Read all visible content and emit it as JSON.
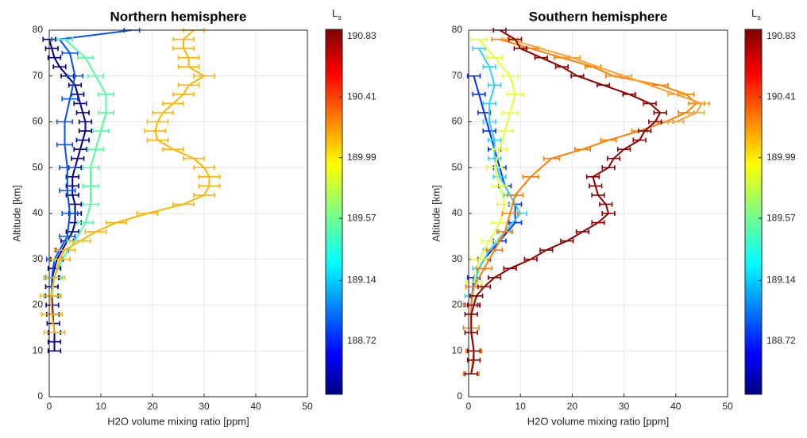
{
  "chart_data": [
    {
      "type": "line",
      "title": "Northern hemisphere",
      "x_label": "H2O volume mixing ratio [ppm]",
      "y_label": "Altitude [km]",
      "xlim": [
        0,
        50
      ],
      "ylim": [
        0,
        80
      ],
      "xticks": [
        0,
        10,
        20,
        30,
        40,
        50
      ],
      "yticks": [
        0,
        10,
        20,
        30,
        40,
        50,
        60,
        70,
        80
      ],
      "grid": true,
      "colorbar": {
        "label": "L",
        "label_sub": "s",
        "lim": [
          188.35,
          190.885
        ],
        "ticks": [
          188.72,
          189.14,
          189.57,
          189.99,
          190.41,
          190.83
        ]
      },
      "series": [
        {
          "color": "#00007f",
          "xerr": 1.2,
          "y": [
            10,
            12,
            14,
            16,
            18,
            20,
            22,
            24,
            26,
            28,
            30,
            32,
            34,
            36,
            38,
            40,
            42,
            44,
            46,
            48,
            50,
            52,
            54,
            56,
            58,
            60,
            62,
            64,
            66,
            68,
            70,
            72,
            74,
            76,
            78
          ],
          "x": [
            1,
            1,
            1,
            0.8,
            0.7,
            0.6,
            0.5,
            0.5,
            0.6,
            1,
            1.5,
            2.5,
            3.5,
            4.5,
            5,
            5,
            5,
            4.5,
            4.5,
            4.5,
            5,
            5.5,
            6,
            6.5,
            7,
            7,
            6.5,
            6,
            5.5,
            5,
            3.5,
            2,
            1,
            0.5,
            0
          ]
        },
        {
          "color": "#0050ff",
          "xerr": 1.5,
          "y": [
            22,
            26,
            30,
            35,
            40,
            45,
            50,
            55,
            60,
            65,
            70,
            75,
            78,
            80
          ],
          "x": [
            0.5,
            0.5,
            1,
            3.5,
            4,
            3.5,
            3.5,
            3,
            3,
            4,
            5,
            4,
            2,
            16
          ]
        },
        {
          "color": "#50ffa0",
          "xerr": 1.5,
          "y": [
            22,
            26,
            30,
            34,
            38,
            42,
            46,
            50,
            54,
            58,
            62,
            66,
            70,
            74,
            78
          ],
          "x": [
            0.5,
            1,
            2.5,
            5,
            7,
            8,
            8,
            8,
            9,
            10,
            11,
            11,
            9,
            7,
            3
          ]
        },
        {
          "color": "#ffb400",
          "xerr": 2,
          "y": [
            14,
            18,
            22,
            26,
            30,
            32,
            34,
            36,
            38,
            40,
            42,
            44,
            46,
            48,
            50,
            52,
            54,
            56,
            58,
            60,
            62,
            64,
            66,
            68,
            70,
            72,
            74,
            76,
            78,
            80
          ],
          "x": [
            1,
            0.5,
            0.3,
            1,
            2,
            3,
            6,
            9,
            13,
            19,
            26,
            30,
            31,
            31,
            30,
            28,
            24,
            21,
            20.5,
            21,
            22,
            24,
            26,
            27,
            30,
            27,
            27,
            26,
            26,
            28
          ]
        }
      ]
    },
    {
      "type": "line",
      "title": "Southern hemisphere",
      "x_label": "H2O volume mixing ratio [ppm]",
      "y_label": "Altitude [km]",
      "xlim": [
        0,
        50
      ],
      "ylim": [
        0,
        80
      ],
      "xticks": [
        0,
        10,
        20,
        30,
        40,
        50
      ],
      "yticks": [
        0,
        10,
        20,
        30,
        40,
        50,
        60,
        70,
        80
      ],
      "grid": true,
      "colorbar": {
        "label": "L",
        "label_sub": "s",
        "lim": [
          188.35,
          190.885
        ],
        "ticks": [
          188.72,
          189.14,
          189.57,
          189.99,
          190.41,
          190.83
        ]
      },
      "series": [
        {
          "color": "#0030ff",
          "xerr": 1.2,
          "y": [
            20,
            26,
            30,
            34,
            38,
            42,
            46,
            50,
            54,
            58,
            62,
            66,
            70
          ],
          "x": [
            0.5,
            1,
            3,
            6,
            9,
            9,
            7,
            6,
            5,
            4,
            3,
            2,
            1
          ]
        },
        {
          "color": "#30d0ff",
          "xerr": 1.2,
          "y": [
            22,
            28,
            32,
            36,
            40,
            44,
            48,
            52,
            56,
            60,
            64,
            68,
            72,
            76
          ],
          "x": [
            0.5,
            2,
            4,
            7,
            10,
            8,
            6,
            5,
            5,
            4,
            4,
            5,
            4,
            2
          ]
        },
        {
          "color": "#e6ff30",
          "xerr": 1.5,
          "y": [
            25,
            30,
            34,
            38,
            42,
            46,
            50,
            54,
            58,
            62,
            66,
            70,
            74,
            78
          ],
          "x": [
            1,
            2,
            4,
            6,
            7,
            6,
            5,
            6,
            7,
            8,
            9,
            8,
            5,
            2
          ]
        },
        {
          "color": "#ff8000",
          "xerr": 1.5,
          "y": [
            5,
            10,
            15,
            20,
            24,
            28,
            32,
            36,
            40,
            44,
            48,
            52,
            54,
            56,
            58,
            60,
            62,
            64,
            66,
            68,
            70,
            72,
            74,
            76,
            78
          ],
          "x": [
            0.5,
            1,
            0.5,
            0.5,
            1,
            3,
            5,
            7,
            8,
            9,
            12,
            16,
            22,
            27,
            33,
            38,
            42,
            44,
            42,
            37,
            28,
            24,
            18,
            12,
            6
          ]
        },
        {
          "color": "#ffa030",
          "xerr": 1.5,
          "y": [
            60,
            62,
            64,
            66,
            70,
            74,
            78
          ],
          "x": [
            40,
            44,
            45,
            40,
            30,
            20,
            8
          ]
        },
        {
          "color": "#8f0000",
          "xerr": 1.2,
          "y": [
            5,
            8,
            10,
            14,
            18,
            20,
            22,
            24,
            26,
            28,
            30,
            32,
            34,
            36,
            38,
            40,
            42,
            44,
            46,
            48,
            50,
            52,
            54,
            56,
            58,
            60,
            62,
            64,
            66,
            68,
            70,
            72,
            74,
            76,
            78,
            80
          ],
          "x": [
            0.5,
            1,
            1,
            0.5,
            0.5,
            1,
            1.5,
            3,
            5,
            8,
            12,
            15,
            19,
            22,
            25,
            27,
            26.5,
            25,
            24.5,
            24,
            27,
            28,
            30,
            33,
            34,
            36,
            37,
            35,
            31,
            26,
            21,
            18,
            14,
            10,
            9,
            6
          ]
        }
      ]
    }
  ]
}
